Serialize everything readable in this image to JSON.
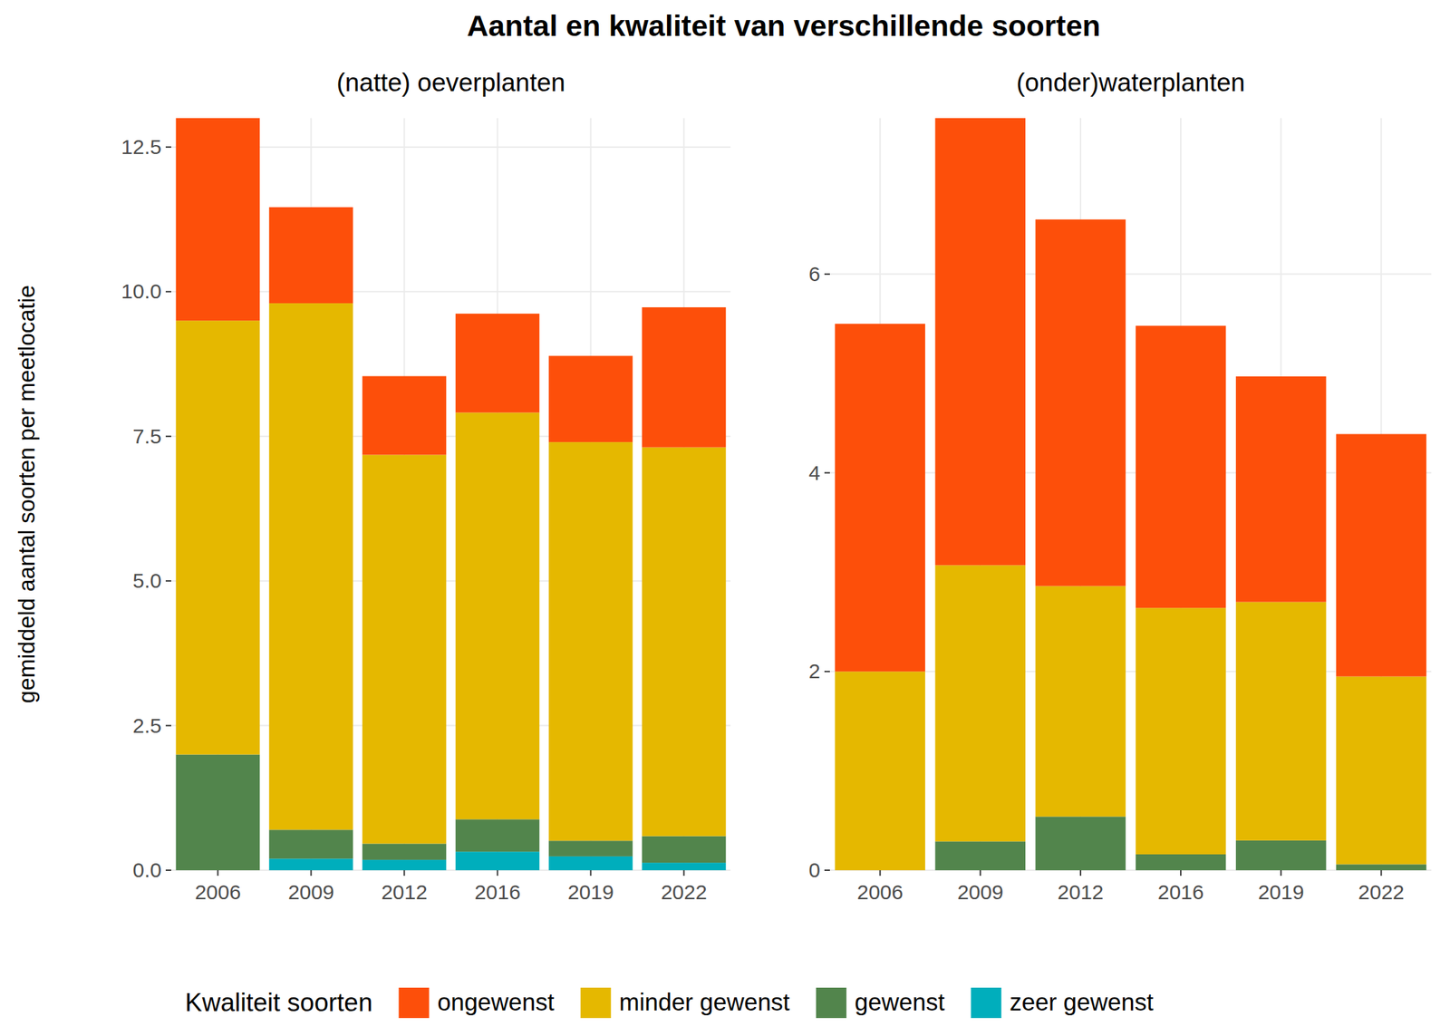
{
  "title": "Aantal en kwaliteit van verschillende soorten",
  "legend_title": "Kwaliteit soorten",
  "chart_data": [
    {
      "type": "bar",
      "stacked": true,
      "grid": true,
      "legend": "bottom",
      "subtitle": "(natte) oeverplanten",
      "y_label": "gemiddeld aantal soorten per meetlocatie",
      "categories": [
        "2006",
        "2009",
        "2012",
        "2016",
        "2019",
        "2022"
      ],
      "ylim": [
        0,
        13
      ],
      "yticks": [
        {
          "value": 0,
          "label": "0.0"
        },
        2.5,
        {
          "value": 5,
          "label": "5.0"
        },
        7.5,
        {
          "value": 10,
          "label": "10.0"
        },
        12.5
      ],
      "series": [
        {
          "name": "ongewenst",
          "color": "#fd4f0a",
          "values": [
            3.5,
            1.66,
            1.36,
            1.71,
            1.49,
            2.42
          ]
        },
        {
          "name": "minder gewenst",
          "color": "#e5b800",
          "values": [
            7.5,
            9.1,
            6.72,
            7.03,
            6.89,
            6.72
          ]
        },
        {
          "name": "gewenst",
          "color": "#52854c",
          "values": [
            2.0,
            0.5,
            0.28,
            0.56,
            0.27,
            0.46
          ]
        },
        {
          "name": "zeer gewenst",
          "color": "#00aebc",
          "values": [
            0,
            0.2,
            0.18,
            0.32,
            0.24,
            0.13
          ]
        }
      ]
    },
    {
      "type": "bar",
      "stacked": true,
      "grid": true,
      "subtitle": "(onder)waterplanten",
      "categories": [
        "2006",
        "2009",
        "2012",
        "2016",
        "2019",
        "2022"
      ],
      "ylim": [
        0,
        7.57
      ],
      "yticks": [
        0,
        2,
        4,
        6
      ],
      "series": [
        {
          "name": "ongewenst",
          "color": "#fd4f0a",
          "values": [
            3.5,
            4.5,
            3.69,
            2.84,
            2.27,
            2.44
          ]
        },
        {
          "name": "minder gewenst",
          "color": "#e5b800",
          "values": [
            2.0,
            2.78,
            2.32,
            2.48,
            2.4,
            1.89
          ]
        },
        {
          "name": "gewenst",
          "color": "#52854c",
          "values": [
            0,
            0.29,
            0.54,
            0.16,
            0.3,
            0.06
          ]
        },
        {
          "name": "zeer gewenst",
          "color": "#00aebc",
          "values": [
            0,
            0,
            0,
            0,
            0,
            0
          ]
        }
      ]
    }
  ]
}
